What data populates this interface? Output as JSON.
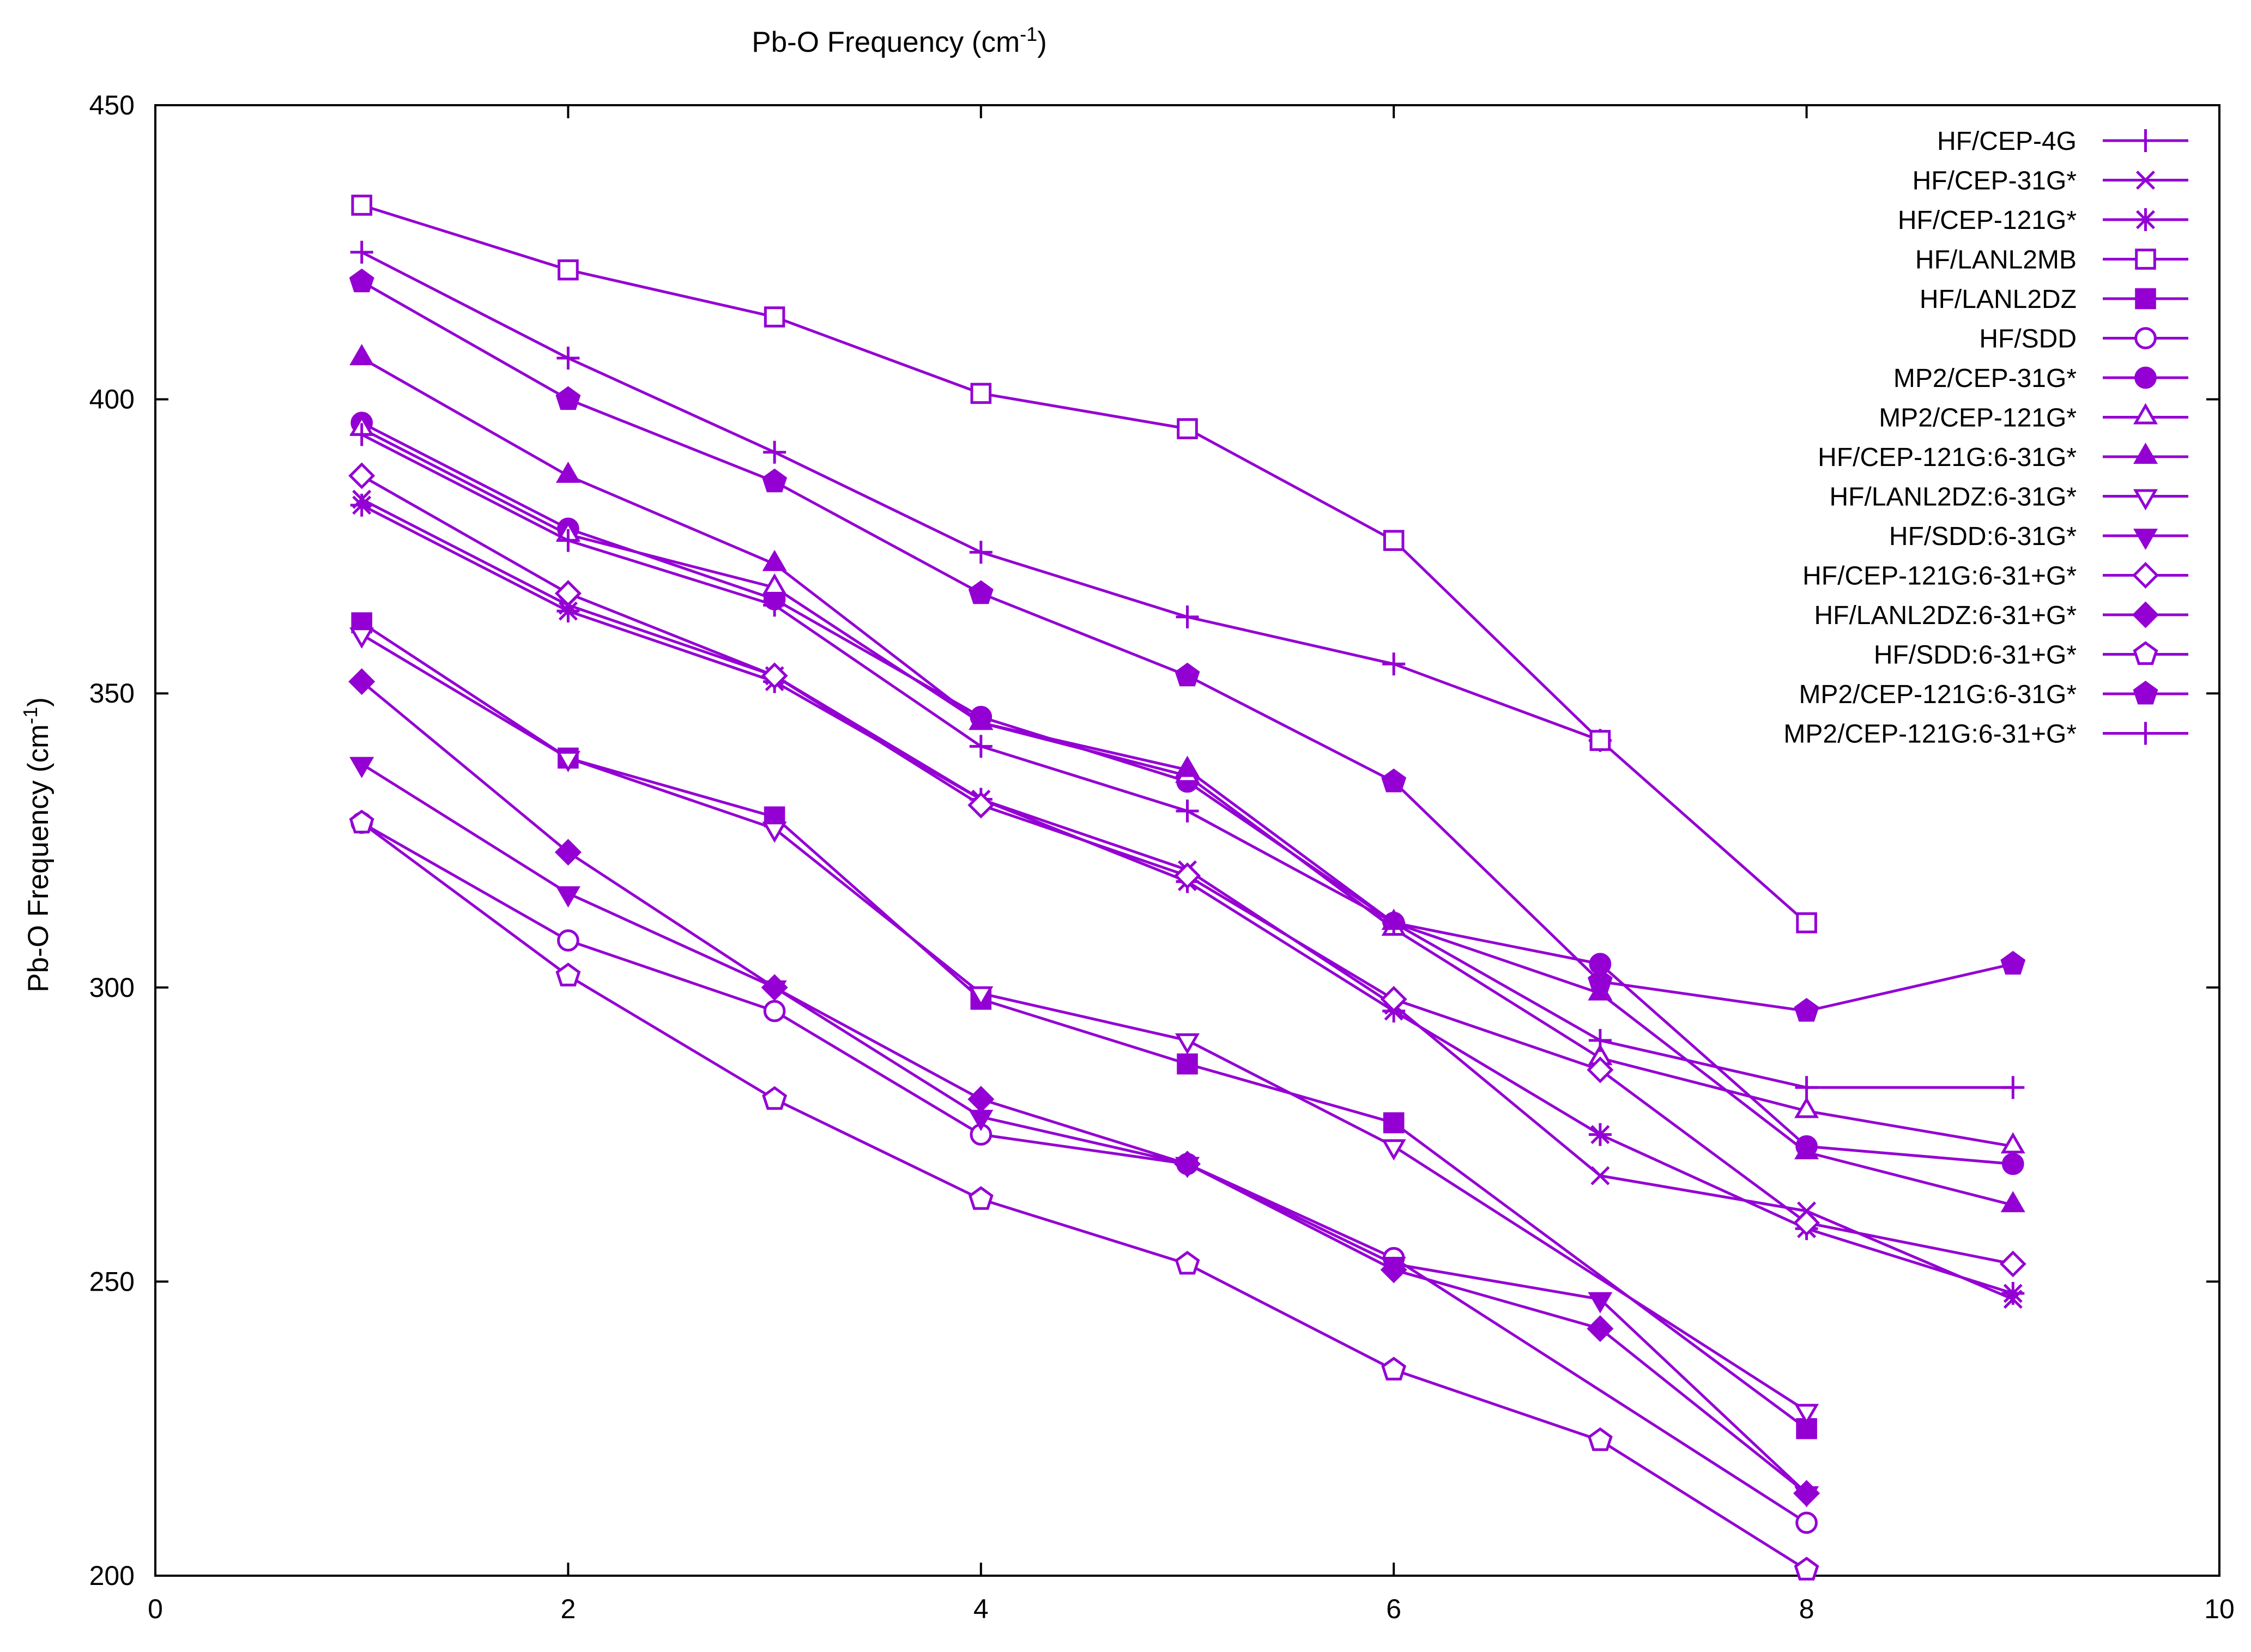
{
  "chart_data": {
    "type": "line",
    "title": "Pb-O Frequency (cm",
    "title_sup": "-1",
    "title_end": ")",
    "ylabel": "Pb-O Frequency (cm",
    "ylabel_sup": "-1",
    "ylabel_end": ")",
    "xlabel": "",
    "xlim": [
      0,
      10
    ],
    "ylim": [
      200,
      450
    ],
    "xticks": [
      0,
      2,
      4,
      6,
      8,
      10
    ],
    "yticks": [
      200,
      250,
      300,
      350,
      400,
      450
    ],
    "grid": false,
    "legend_position": "top-right",
    "line_color": "#9400d3",
    "series": [
      {
        "name": "HF/CEP-4G",
        "marker": "plus",
        "x": [
          1,
          2,
          3,
          4,
          5,
          6,
          7,
          8,
          9
        ],
        "values": [
          425,
          407,
          391,
          374,
          363,
          355,
          342,
          null,
          null
        ]
      },
      {
        "name": "HF/CEP-31G*",
        "marker": "cross",
        "x": [
          1,
          2,
          3,
          4,
          5,
          6,
          7,
          8,
          9
        ],
        "values": [
          383,
          365,
          353,
          332,
          320,
          297,
          268,
          262,
          247
        ]
      },
      {
        "name": "HF/CEP-121G*",
        "marker": "star",
        "x": [
          1,
          2,
          3,
          4,
          5,
          6,
          7,
          8,
          9
        ],
        "values": [
          382,
          364,
          352,
          332,
          318,
          296,
          275,
          259,
          248
        ]
      },
      {
        "name": "HF/LANL2MB",
        "marker": "square-open",
        "x": [
          1,
          2,
          3,
          4,
          5,
          6,
          7,
          8
        ],
        "values": [
          433,
          422,
          414,
          401,
          395,
          376,
          342,
          311
        ]
      },
      {
        "name": "HF/LANL2DZ",
        "marker": "square-filled",
        "x": [
          1,
          2,
          3,
          4,
          5,
          6,
          7,
          8
        ],
        "values": [
          362,
          339,
          329,
          298,
          287,
          277,
          null,
          225
        ]
      },
      {
        "name": "HF/SDD",
        "marker": "circle-open",
        "x": [
          1,
          2,
          3,
          4,
          5,
          6,
          7,
          8
        ],
        "values": [
          328,
          308,
          296,
          275,
          270,
          254,
          null,
          209
        ]
      },
      {
        "name": "MP2/CEP-31G*",
        "marker": "circle-filled",
        "x": [
          1,
          2,
          3,
          4,
          5,
          6,
          7,
          8,
          9
        ],
        "values": [
          396,
          378,
          366,
          346,
          335,
          311,
          304,
          273,
          270
        ]
      },
      {
        "name": "MP2/CEP-121G*",
        "marker": "triangle-up-open",
        "x": [
          1,
          2,
          3,
          4,
          5,
          6,
          7,
          8,
          9
        ],
        "values": [
          395,
          377,
          368,
          345,
          336,
          310,
          288,
          279,
          273
        ]
      },
      {
        "name": "HF/CEP-121G:6-31G*",
        "marker": "triangle-up-filled",
        "x": [
          1,
          2,
          3,
          4,
          5,
          6,
          7,
          8,
          9
        ],
        "values": [
          407,
          387,
          372,
          345,
          337,
          311,
          299,
          272,
          263
        ]
      },
      {
        "name": "HF/LANL2DZ:6-31G*",
        "marker": "triangle-down-open",
        "x": [
          1,
          2,
          3,
          4,
          5,
          6,
          7,
          8
        ],
        "values": [
          360,
          339,
          327,
          299,
          291,
          273,
          null,
          228
        ]
      },
      {
        "name": "HF/SDD:6-31G*",
        "marker": "triangle-down-filled",
        "x": [
          1,
          2,
          3,
          4,
          5,
          6,
          7,
          8
        ],
        "values": [
          338,
          316,
          300,
          278,
          270,
          253,
          247,
          214
        ]
      },
      {
        "name": "HF/CEP-121G:6-31+G*",
        "marker": "diamond-open",
        "x": [
          1,
          2,
          3,
          4,
          5,
          6,
          7,
          8,
          9
        ],
        "values": [
          387,
          367,
          353,
          331,
          319,
          298,
          286,
          260,
          253
        ]
      },
      {
        "name": "HF/LANL2DZ:6-31+G*",
        "marker": "diamond-filled",
        "x": [
          1,
          2,
          3,
          4,
          5,
          6,
          7,
          8
        ],
        "values": [
          352,
          323,
          300,
          281,
          270,
          252,
          242,
          214
        ]
      },
      {
        "name": "HF/SDD:6-31+G*",
        "marker": "pentagon-open",
        "x": [
          1,
          2,
          3,
          4,
          5,
          6,
          7,
          8
        ],
        "values": [
          328,
          302,
          281,
          264,
          253,
          235,
          223,
          201
        ]
      },
      {
        "name": "MP2/CEP-121G:6-31G*",
        "marker": "pentagon-filled",
        "x": [
          1,
          2,
          3,
          4,
          5,
          6,
          7,
          8,
          9
        ],
        "values": [
          420,
          400,
          386,
          367,
          353,
          335,
          301,
          296,
          304
        ]
      },
      {
        "name": "MP2/CEP-121G:6-31+G*",
        "marker": "plus",
        "x": [
          1,
          2,
          3,
          4,
          5,
          6,
          7,
          8,
          9
        ],
        "values": [
          394,
          376,
          365,
          341,
          330,
          311,
          291,
          283,
          283
        ]
      }
    ]
  }
}
